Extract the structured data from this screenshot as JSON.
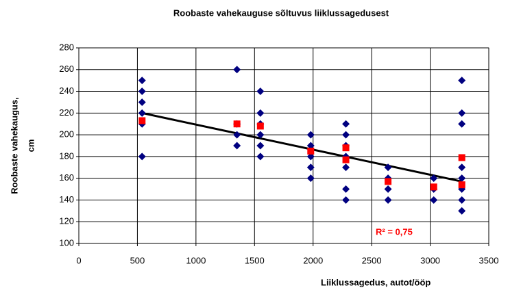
{
  "chart_data": {
    "type": "scatter",
    "title": "Roobaste vahekauguse sõltuvus liiklussagedusest",
    "xlabel": "Liiklussagedus, autot/ööp",
    "ylabel": [
      "Roobaste vahekaugus,",
      "cm"
    ],
    "annotation": "R² = 0,75",
    "xlim": [
      0,
      3500
    ],
    "xticks": [
      0,
      500,
      1000,
      1500,
      2000,
      2500,
      3000,
      3500
    ],
    "ylim": [
      100,
      280
    ],
    "yticks": [
      100,
      120,
      140,
      160,
      180,
      200,
      220,
      240,
      260,
      280
    ],
    "grid": true,
    "series": [
      {
        "color": "#000080",
        "marker": "diamond",
        "x": [
          540,
          540,
          540,
          540,
          540,
          540,
          1350,
          1350,
          1350,
          1350,
          1550,
          1550,
          1550,
          1550,
          1550,
          1550,
          1980,
          1980,
          1980,
          1980,
          1980,
          2280,
          2280,
          2280,
          2280,
          2280,
          2280,
          2280,
          2640,
          2640,
          2640,
          2640,
          3030,
          3030,
          3030,
          3270,
          3270,
          3270,
          3270,
          3270,
          3270,
          3270,
          3270
        ],
        "values": [
          250,
          240,
          230,
          220,
          210,
          180,
          260,
          210,
          200,
          190,
          240,
          220,
          210,
          200,
          190,
          180,
          200,
          190,
          180,
          170,
          160,
          210,
          200,
          190,
          180,
          170,
          150,
          140,
          170,
          160,
          150,
          140,
          160,
          150,
          140,
          250,
          220,
          210,
          170,
          160,
          150,
          140,
          130
        ]
      },
      {
        "color": "#ff0000",
        "marker": "square",
        "x": [
          540,
          1350,
          1550,
          1980,
          2280,
          2280,
          2640,
          3030,
          3270,
          3270
        ],
        "values": [
          213,
          210,
          208,
          185,
          188,
          177,
          157,
          152,
          179,
          154
        ]
      },
      {
        "color": "#000000",
        "marker": "line",
        "x": [
          540,
          3270
        ],
        "values": [
          220,
          157
        ]
      }
    ]
  }
}
